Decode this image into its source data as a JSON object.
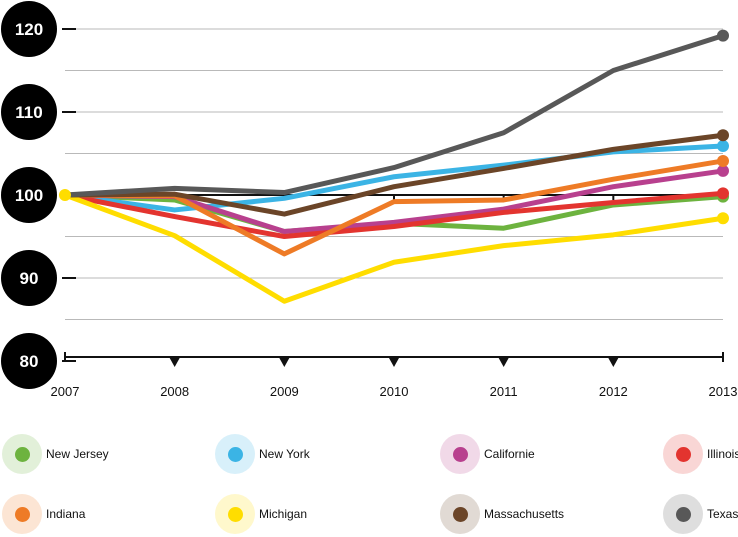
{
  "chart_data": {
    "type": "line",
    "x": [
      2007,
      2008,
      2009,
      2010,
      2011,
      2012,
      2013
    ],
    "xticklabels": [
      "2007",
      "2008",
      "2009",
      "2010",
      "2011",
      "2012",
      "2013"
    ],
    "yticks": [
      80,
      90,
      100,
      110,
      120
    ],
    "yticklabels": [
      "80",
      "90",
      "100",
      "110",
      "120"
    ],
    "ylim": [
      80,
      121
    ],
    "baseline": 100,
    "grid": true,
    "legend_position": "bottom",
    "series": [
      {
        "name": "New Jersey",
        "color": "#6db33f",
        "values": [
          100,
          99.4,
          95.6,
          96.6,
          96.0,
          98.8,
          99.8
        ]
      },
      {
        "name": "New York",
        "color": "#3bb4e5",
        "values": [
          100,
          98.2,
          99.6,
          102.2,
          103.6,
          105.2,
          105.9
        ]
      },
      {
        "name": "Californie",
        "color": "#b8408e",
        "values": [
          100,
          99.8,
          95.6,
          96.7,
          98.3,
          101.0,
          102.9
        ]
      },
      {
        "name": "Illinois",
        "color": "#e3342f",
        "values": [
          100,
          97.4,
          95.0,
          96.2,
          97.9,
          99.1,
          100.2
        ]
      },
      {
        "name": "Indiana",
        "color": "#ee7b26",
        "values": [
          100,
          99.9,
          92.9,
          99.2,
          99.4,
          101.9,
          104.1
        ]
      },
      {
        "name": "Michigan",
        "color": "#ffdd00",
        "values": [
          100,
          95.1,
          87.2,
          91.9,
          93.9,
          95.2,
          97.2
        ]
      },
      {
        "name": "Massachusetts",
        "color": "#6b4528",
        "values": [
          100,
          100.1,
          97.7,
          101.0,
          103.2,
          105.5,
          107.2
        ]
      },
      {
        "name": "Texas",
        "color": "#585858",
        "values": [
          100,
          100.8,
          100.3,
          103.3,
          107.5,
          115.0,
          119.2
        ]
      }
    ]
  }
}
